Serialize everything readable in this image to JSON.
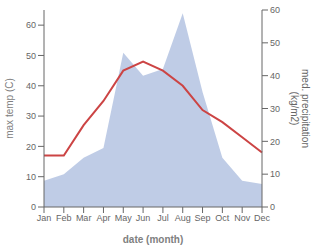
{
  "chart_data": {
    "type": "line",
    "categories": [
      "Jan",
      "Feb",
      "Mar",
      "Apr",
      "May",
      "Jun",
      "Jul",
      "Aug",
      "Sep",
      "Oct",
      "Nov",
      "Dec"
    ],
    "series": [
      {
        "type": "area",
        "color": "#aabbdd",
        "axis": "y2",
        "values": [
          8,
          10,
          15,
          18,
          47,
          40,
          42,
          59,
          35,
          15,
          8,
          7
        ]
      },
      {
        "type": "line",
        "color": "#cc4444",
        "values": [
          17,
          17,
          27,
          35,
          45,
          48,
          45,
          40,
          32,
          28,
          23,
          18
        ]
      }
    ],
    "xlabel": "date (month)",
    "ylabel": "max temp (C)",
    "y2label": "med. precipitation\n(kg/m2)",
    "ylim": [
      0,
      65
    ],
    "yticks": [
      0,
      10,
      20,
      30,
      40,
      50,
      60
    ],
    "y2lim": [
      0,
      60
    ],
    "y2ticks": [
      0,
      10,
      20,
      30,
      40,
      50,
      60
    ]
  }
}
